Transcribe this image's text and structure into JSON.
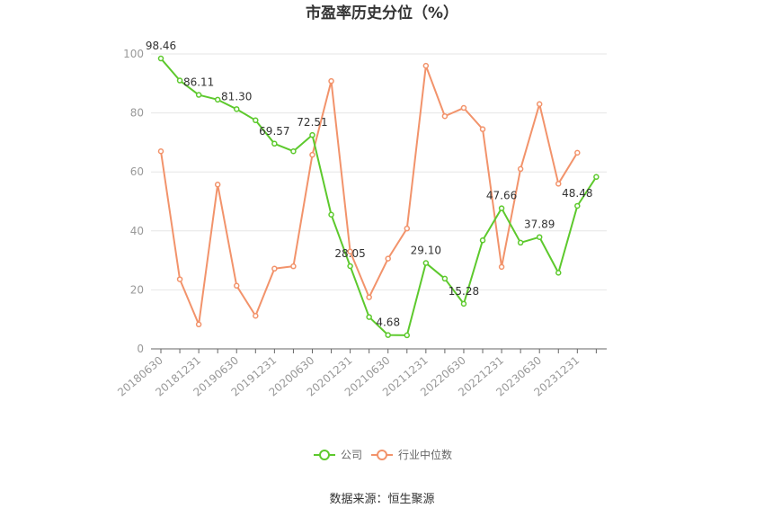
{
  "chart_data": {
    "type": "line",
    "title": "市盈率历史分位（%）",
    "xlabel": "",
    "ylabel": "",
    "ylim": [
      0,
      100
    ],
    "yticks": [
      "0",
      "20",
      "40",
      "60",
      "80",
      "100"
    ],
    "grid": true,
    "legend_position": "bottom",
    "x": [
      "20180630",
      "20180930",
      "20181231",
      "20190331",
      "20190630",
      "20190930",
      "20191231",
      "20200331",
      "20200630",
      "20200930",
      "20201231",
      "20210331",
      "20210630",
      "20210930",
      "20211231",
      "20220331",
      "20220630",
      "20220930",
      "20221231",
      "20230331",
      "20230630",
      "20230930",
      "20231231",
      "20240331"
    ],
    "xtick_labels": [
      "20180630",
      "20181231",
      "20190630",
      "20191231",
      "20200630",
      "20201231",
      "20210630",
      "20211231",
      "20220630",
      "20221231",
      "20230630",
      "20231231"
    ],
    "series": [
      {
        "name": "公司",
        "color": "#5dc92d",
        "values": [
          98.46,
          91.0,
          86.11,
          84.5,
          81.3,
          77.5,
          69.57,
          67.0,
          72.51,
          45.5,
          28.05,
          10.8,
          4.68,
          4.6,
          29.1,
          23.8,
          15.28,
          36.8,
          47.66,
          36.0,
          37.89,
          25.8,
          48.48,
          58.3
        ],
        "labels": [
          "98.46",
          "",
          "86.11",
          "",
          "81.30",
          "",
          "69.57",
          "",
          "72.51",
          "",
          "28.05",
          "",
          "4.68",
          "",
          "29.10",
          "",
          "15.28",
          "",
          "47.66",
          "",
          "37.89",
          "",
          "48.48",
          ""
        ]
      },
      {
        "name": "行业中位数",
        "color": "#f2936b",
        "values": [
          67.0,
          23.6,
          8.3,
          55.7,
          21.4,
          11.2,
          27.2,
          28.0,
          65.8,
          90.8,
          33.0,
          17.5,
          30.6,
          40.8,
          96.0,
          78.9,
          81.7,
          74.5,
          27.8,
          61.0,
          83.0,
          56.0,
          66.5,
          null
        ],
        "labels": []
      }
    ],
    "source": "数据来源：恒生聚源"
  }
}
